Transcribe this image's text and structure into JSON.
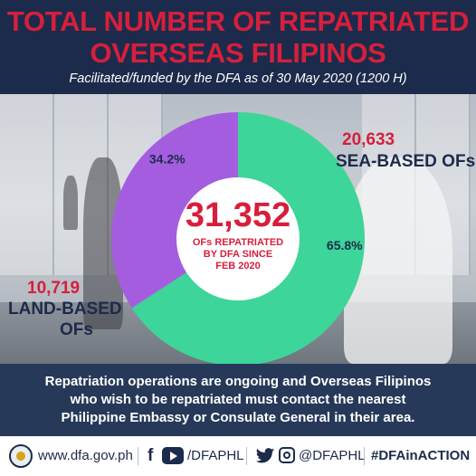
{
  "header": {
    "title_line1": "TOTAL NUMBER OF REPATRIATED",
    "title_line2": "OVERSEAS FILIPINOS",
    "subtitle": "Facilitated/funded by the DFA as of  30 May 2020 (1200 H)"
  },
  "colors": {
    "accent_red": "#d61f3c",
    "navy": "#1c2b4b",
    "sea_slice": "#3dd599",
    "land_slice": "#a55de0"
  },
  "chart_data": {
    "type": "pie",
    "donut": true,
    "center_value": "31,352",
    "center_caption_lines": [
      "OFs REPATRIATED",
      "BY DFA SINCE",
      "FEB 2020"
    ],
    "categories": [
      "SEA-BASED OFs",
      "LAND-BASED OFs"
    ],
    "values": [
      20633,
      10719
    ],
    "value_labels": [
      "20,633",
      "10,719"
    ],
    "percent_labels": [
      "65.8%",
      "34.2%"
    ],
    "percents": [
      65.8,
      34.2
    ],
    "slice_colors": [
      "#3dd599",
      "#a55de0"
    ],
    "labels": {
      "sea_value": "20,633",
      "sea_name": "SEA-BASED OFs",
      "land_value": "10,719",
      "land_name_line1": "LAND-BASED",
      "land_name_line2": "OFs"
    }
  },
  "note": {
    "line1": "Repatriation operations are ongoing and Overseas Filipinos",
    "line2": "who wish to be repatriated must contact the nearest",
    "line3": "Philippine Embassy or Consulate General in their area."
  },
  "footer": {
    "url": "www.dfa.gov.ph",
    "facebook_icon": "f",
    "youtube_icon": "youtube-icon",
    "handle_fb_yt": "/DFAPHL",
    "twitter_icon": "twitter-icon",
    "instagram_icon": "instagram-icon",
    "handle_tw_ig": "@DFAPHL",
    "hashtag": "#DFAinACTION"
  }
}
